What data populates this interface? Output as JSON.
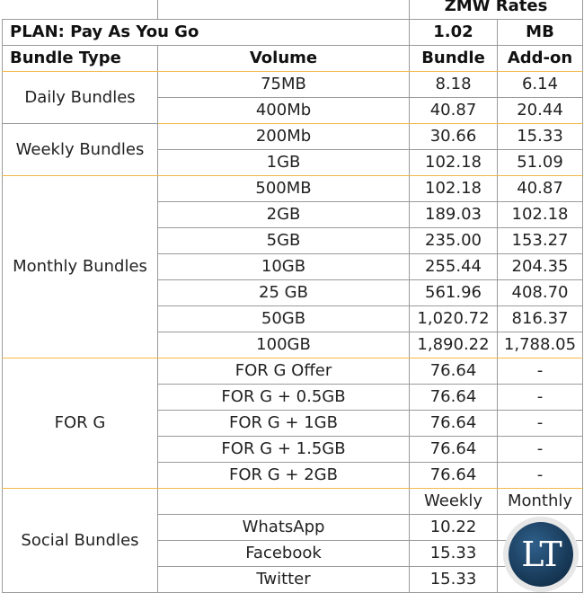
{
  "header": {
    "zmw_rates": "ZMW Rates",
    "plan": "PLAN: Pay As You Go",
    "rate": "1.02",
    "mb": "MB",
    "col_bundle_type": "Bundle Type",
    "col_volume": "Volume",
    "col_bundle": "Bundle",
    "col_addon": "Add-on"
  },
  "groups": {
    "daily": {
      "label": "Daily Bundles",
      "rows": [
        {
          "volume": "75MB",
          "bundle": "8.18",
          "addon": "6.14"
        },
        {
          "volume": "400Mb",
          "bundle": "40.87",
          "addon": "20.44"
        }
      ]
    },
    "weekly": {
      "label": "Weekly Bundles",
      "rows": [
        {
          "volume": "200Mb",
          "bundle": "30.66",
          "addon": "15.33"
        },
        {
          "volume": "1GB",
          "bundle": "102.18",
          "addon": "51.09"
        }
      ]
    },
    "monthly": {
      "label": "Monthly Bundles",
      "rows": [
        {
          "volume": "500MB",
          "bundle": "102.18",
          "addon": "40.87"
        },
        {
          "volume": "2GB",
          "bundle": "189.03",
          "addon": "102.18"
        },
        {
          "volume": "5GB",
          "bundle": "235.00",
          "addon": "153.27"
        },
        {
          "volume": "10GB",
          "bundle": "255.44",
          "addon": "204.35"
        },
        {
          "volume": "25 GB",
          "bundle": "561.96",
          "addon": "408.70"
        },
        {
          "volume": "50GB",
          "bundle": "1,020.72",
          "addon": "816.37"
        },
        {
          "volume": "100GB",
          "bundle": "1,890.22",
          "addon": "1,788.05"
        }
      ]
    },
    "forg": {
      "label": "FOR G",
      "rows": [
        {
          "volume": "FOR G Offer",
          "bundle": "76.64",
          "addon": "-"
        },
        {
          "volume": "FOR G + 0.5GB",
          "bundle": "76.64",
          "addon": "-"
        },
        {
          "volume": "FOR G + 1GB",
          "bundle": "76.64",
          "addon": "-"
        },
        {
          "volume": "FOR G + 1.5GB",
          "bundle": "76.64",
          "addon": "-"
        },
        {
          "volume": "FOR G + 2GB",
          "bundle": "76.64",
          "addon": "-"
        }
      ]
    },
    "social": {
      "label": "Social Bundles",
      "col_weekly": "Weekly",
      "col_monthly": "Monthly",
      "rows": [
        {
          "volume": "WhatsApp",
          "weekly": "10.22",
          "monthly": ""
        },
        {
          "volume": "Facebook",
          "weekly": "15.33",
          "monthly": ""
        },
        {
          "volume": "Twitter",
          "weekly": "15.33",
          "monthly": ""
        }
      ]
    }
  },
  "logo": {
    "text": "LT"
  }
}
